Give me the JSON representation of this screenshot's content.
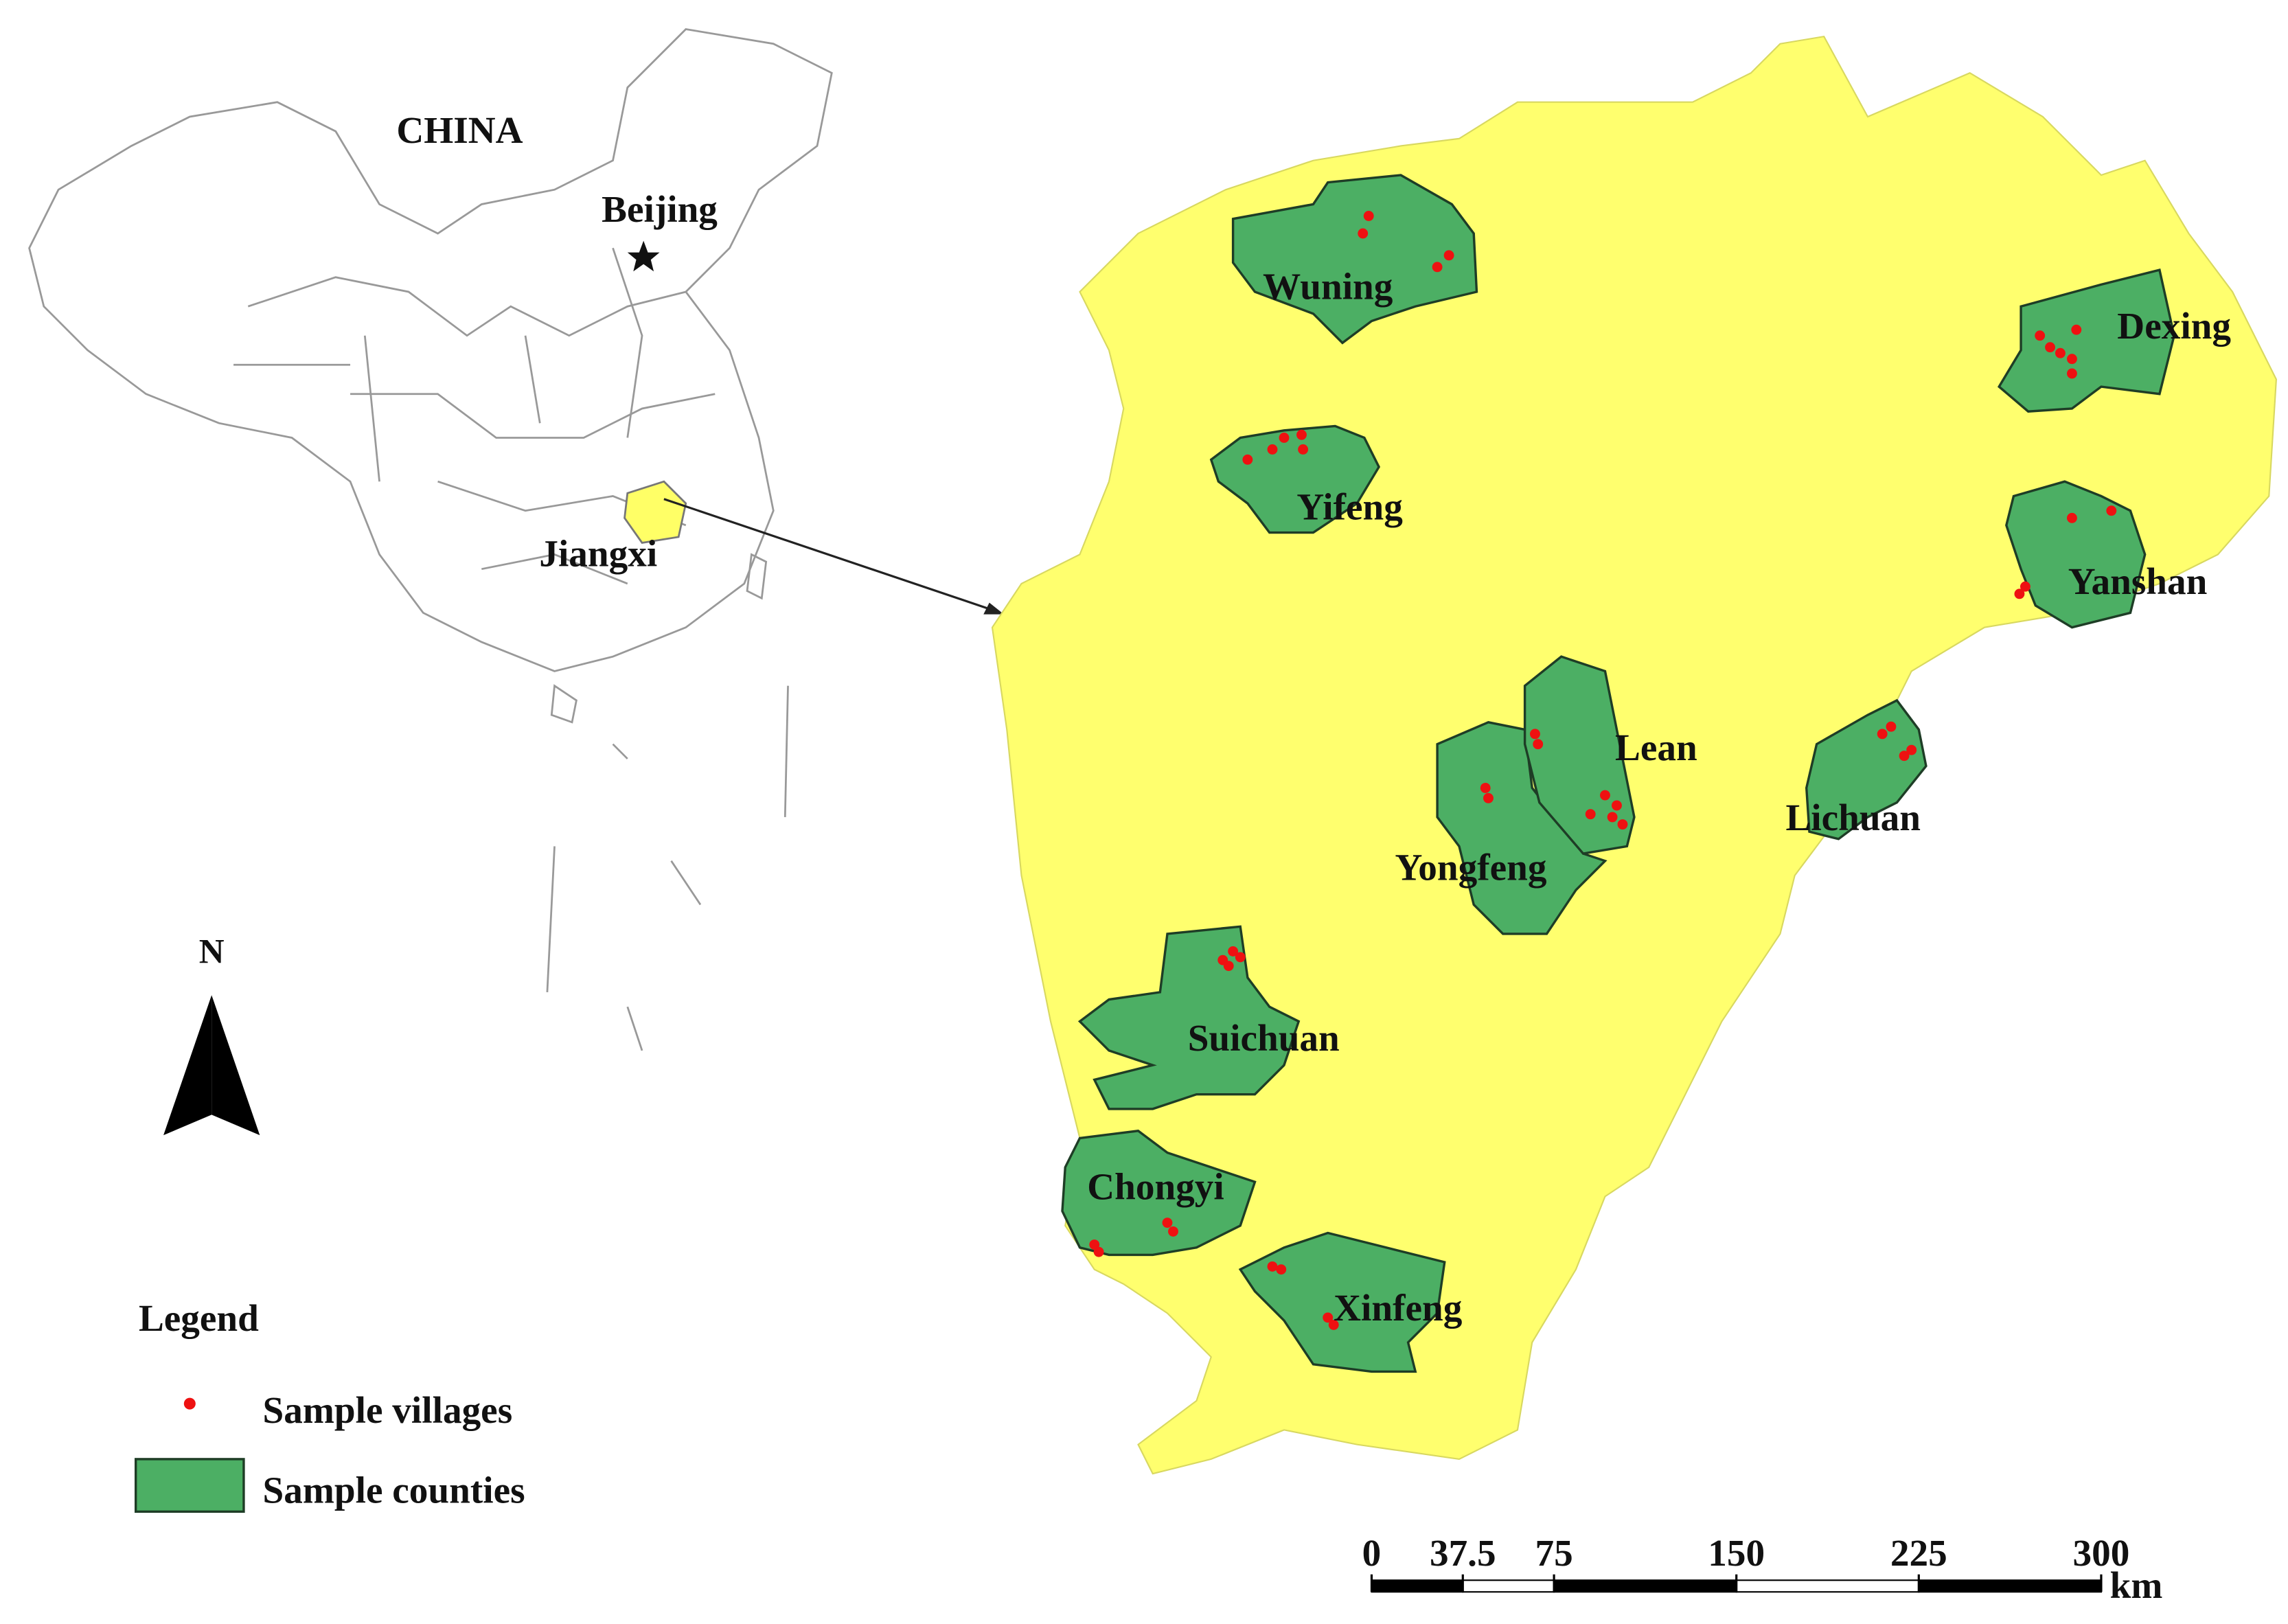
{
  "map": {
    "country_label": "CHINA",
    "capital_label": "Beijing",
    "province_label": "Jiangxi",
    "north_label": "N",
    "counties": [
      "Wuning",
      "Yifeng",
      "Dexing",
      "Yanshan",
      "Lean",
      "Yongfeng",
      "Lichuan",
      "Suichuan",
      "Chongyi",
      "Xinfeng"
    ],
    "legend": {
      "title": "Legend",
      "items": [
        "Sample villages",
        "Sample counties"
      ]
    },
    "scale_bar": {
      "ticks": [
        0,
        37.5,
        75,
        150,
        225,
        300
      ],
      "unit": "km"
    }
  }
}
